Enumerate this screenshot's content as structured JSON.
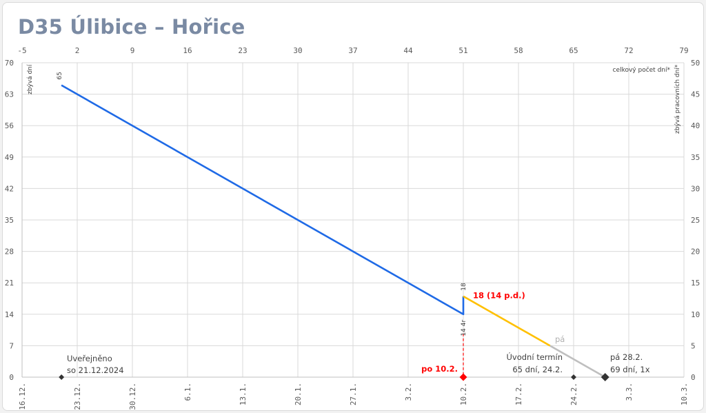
{
  "chart_data": {
    "type": "line",
    "title": "D35 Úlibice – Hořice",
    "left_axis": {
      "label": "zbývá dní",
      "ticks": [
        0,
        7,
        14,
        21,
        28,
        35,
        42,
        49,
        56,
        63,
        70
      ],
      "range": [
        0,
        70
      ]
    },
    "right_axis": {
      "label": "zbývá pracovních dní*",
      "ticks": [
        0,
        5,
        10,
        15,
        20,
        25,
        30,
        35,
        40,
        45,
        50
      ],
      "range": [
        0,
        50
      ]
    },
    "top_axis": {
      "label": "celkový počet dní*",
      "ticks": [
        -5,
        2,
        9,
        16,
        23,
        30,
        37,
        44,
        51,
        58,
        65,
        72,
        79
      ],
      "range": [
        -5,
        79
      ]
    },
    "bottom_axis": {
      "ticks": [
        "16.12.",
        "23.12.",
        "30.12.",
        "6.1.",
        "13.1.",
        "20.1.",
        "27.1.",
        "3.2.",
        "10.2.",
        "17.2.",
        "24.2.",
        "3.3.",
        "10.3."
      ]
    },
    "grid": true,
    "series": [
      {
        "color": "#1f6ae6",
        "points": [
          [
            0,
            65
          ],
          [
            51,
            14
          ],
          [
            51,
            18
          ]
        ]
      },
      {
        "color": "#ffc000",
        "points": [
          [
            51,
            18
          ],
          [
            62,
            7
          ]
        ]
      },
      {
        "color": "#bfbfbf",
        "points": [
          [
            62,
            7
          ],
          [
            69,
            0
          ]
        ]
      }
    ],
    "markers": [
      {
        "x": 0,
        "y": 0,
        "color": "#333333",
        "label_lines": [
          "Uveřejněno",
          "so 21.12.2024"
        ]
      },
      {
        "x": 51,
        "y": 0,
        "color": "#ff0000",
        "label_lines": [
          "po 10.2."
        ]
      },
      {
        "x": 65,
        "y": 0,
        "color": "#333333",
        "label_lines": [
          "Úvodní termín",
          "65 dní, 24.2."
        ]
      },
      {
        "x": 69,
        "y": 0,
        "color": "#333333",
        "label_lines": [
          "pá 28.2.",
          "69 dní, 1x"
        ]
      }
    ],
    "annotations": {
      "start_value": "65",
      "jump_value": "18",
      "jump_label": "18 (14 p.d.)",
      "drop_label": "14 4r",
      "mid_label": "pá"
    }
  },
  "colors": {
    "title": "#7a8aa3",
    "grid": "#d9d9d9",
    "axis_text": "#595959",
    "red": "#ff0000"
  }
}
